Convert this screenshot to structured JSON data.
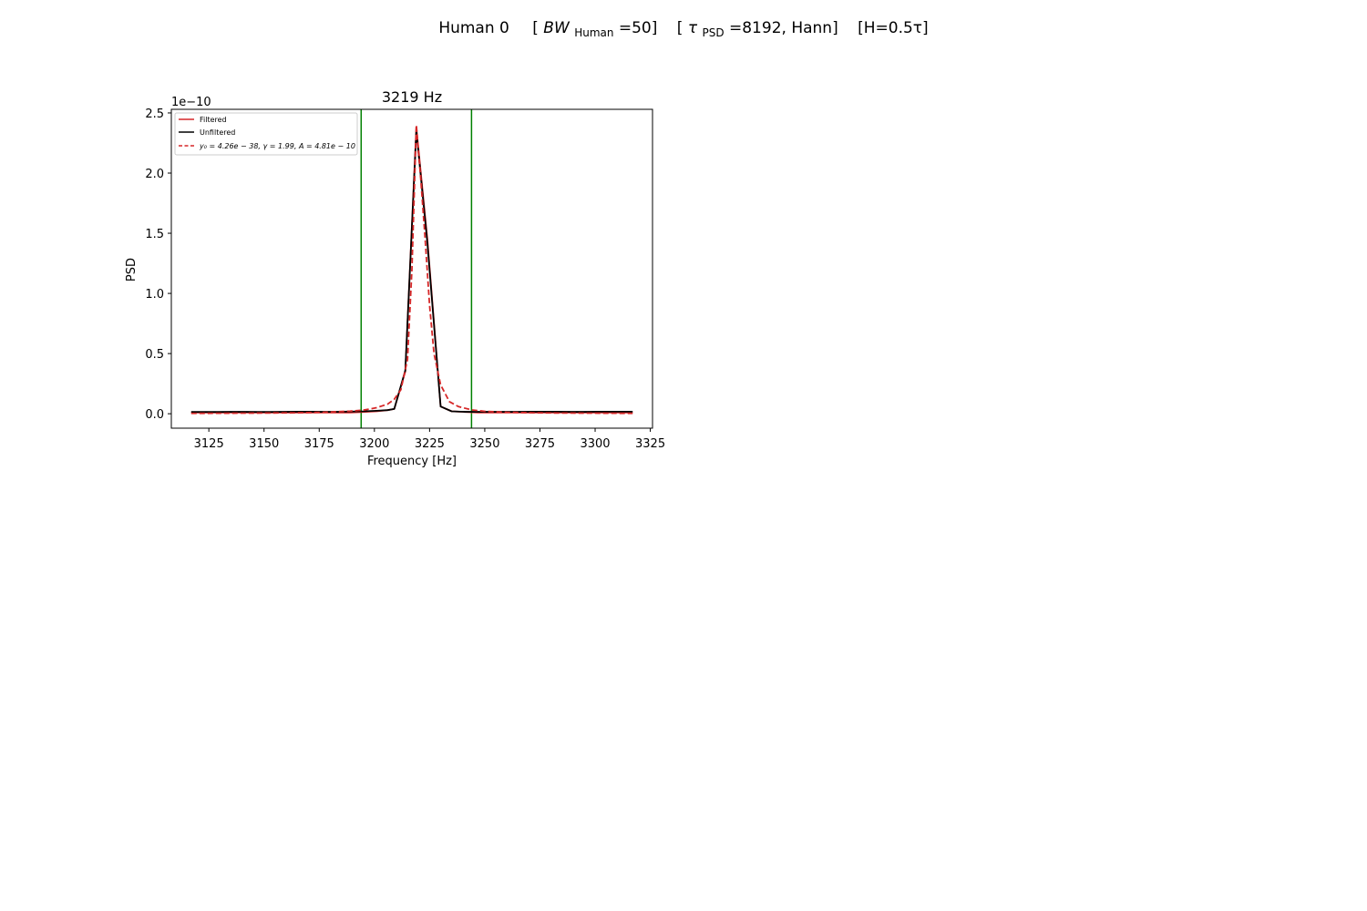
{
  "figure": {
    "suptitle": {
      "prefix": "Human 0",
      "bw_open": "[",
      "bw_symbol": "BW",
      "bw_sub": "Human",
      "bw_value": "=50]",
      "tau_open": "[",
      "tau_symbol": "τ",
      "tau_sub": "PSD",
      "tau_value": "=8192, Hann]",
      "h_part": "[H=0.5τ]"
    }
  },
  "chart_data": {
    "type": "line",
    "title": "3219 Hz",
    "xlabel": "Frequency [Hz]",
    "ylabel": "PSD",
    "y_offset_label": "1e−10",
    "y_scale": 1e-10,
    "xlim": [
      3108,
      3326
    ],
    "ylim": [
      -0.12,
      2.53
    ],
    "xticks": [
      3125,
      3150,
      3175,
      3200,
      3225,
      3250,
      3275,
      3300,
      3325
    ],
    "yticks": [
      0.0,
      0.5,
      1.0,
      1.5,
      2.0,
      2.5
    ],
    "ytick_labels": [
      "0.0",
      "0.5",
      "1.0",
      "1.5",
      "2.0",
      "2.5"
    ],
    "vlines": [
      {
        "name": "band-lower",
        "x": 3194,
        "color": "#008000"
      },
      {
        "name": "band-upper",
        "x": 3244,
        "color": "#008000"
      }
    ],
    "series": [
      {
        "name": "Filtered",
        "color": "#d62728",
        "style": "solid",
        "x": [
          3117,
          3123,
          3129,
          3135,
          3141,
          3147,
          3153,
          3159,
          3165,
          3171,
          3177,
          3183,
          3189,
          3195,
          3201,
          3206,
          3209,
          3214,
          3219,
          3224,
          3230,
          3235,
          3241,
          3247,
          3253,
          3259,
          3265,
          3271,
          3277,
          3283,
          3289,
          3295,
          3301,
          3307,
          3313,
          3317
        ],
        "values": [
          0.01,
          0.01,
          0.01,
          0.01,
          0.01,
          0.01,
          0.01,
          0.01,
          0.01,
          0.01,
          0.01,
          0.01,
          0.01,
          0.015,
          0.02,
          0.03,
          0.04,
          0.35,
          2.38,
          1.45,
          0.06,
          0.02,
          0.015,
          0.01,
          0.01,
          0.01,
          0.01,
          0.01,
          0.01,
          0.01,
          0.01,
          0.01,
          0.01,
          0.01,
          0.01,
          0.01
        ]
      },
      {
        "name": "Unfiltered",
        "color": "#000000",
        "style": "solid",
        "x": [
          3117,
          3123,
          3129,
          3135,
          3141,
          3147,
          3153,
          3159,
          3165,
          3171,
          3177,
          3183,
          3189,
          3195,
          3201,
          3206,
          3209,
          3214,
          3219,
          3224,
          3230,
          3235,
          3241,
          3247,
          3253,
          3259,
          3265,
          3271,
          3277,
          3283,
          3289,
          3295,
          3301,
          3307,
          3313,
          3317
        ],
        "values": [
          0.015,
          0.015,
          0.015,
          0.016,
          0.016,
          0.015,
          0.015,
          0.016,
          0.017,
          0.017,
          0.016,
          0.016,
          0.018,
          0.02,
          0.025,
          0.03,
          0.04,
          0.36,
          2.35,
          1.42,
          0.06,
          0.02,
          0.016,
          0.016,
          0.016,
          0.016,
          0.016,
          0.017,
          0.017,
          0.017,
          0.016,
          0.016,
          0.017,
          0.017,
          0.017,
          0.017
        ]
      },
      {
        "name": "fit",
        "legend_label": "y₀ = 4.26e − 38, γ = 1.99, A = 4.81e − 10",
        "color": "#d62728",
        "style": "dashed",
        "x": [
          3117,
          3129,
          3141,
          3153,
          3165,
          3177,
          3189,
          3195,
          3201,
          3206,
          3209,
          3212,
          3215,
          3217,
          3219,
          3221,
          3223,
          3225,
          3227,
          3230,
          3234,
          3238,
          3244,
          3250,
          3260,
          3272,
          3284,
          3296,
          3308,
          3317
        ],
        "values": [
          0.003,
          0.004,
          0.005,
          0.006,
          0.008,
          0.012,
          0.022,
          0.03,
          0.05,
          0.08,
          0.12,
          0.2,
          0.45,
          1.2,
          2.4,
          1.95,
          1.45,
          0.9,
          0.5,
          0.24,
          0.1,
          0.06,
          0.032,
          0.02,
          0.012,
          0.008,
          0.006,
          0.005,
          0.004,
          0.003
        ]
      }
    ],
    "legend_position": "upper-left"
  }
}
